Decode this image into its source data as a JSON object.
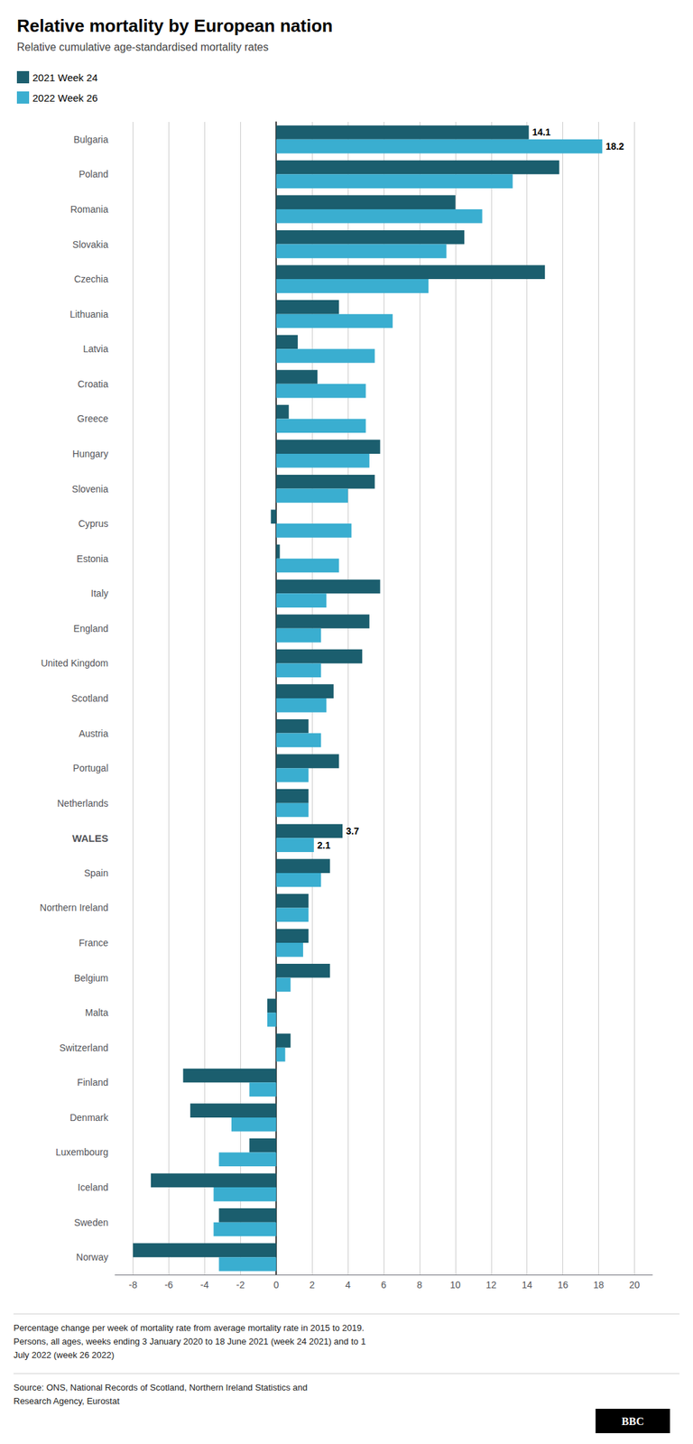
{
  "chart_data": {
    "type": "bar",
    "orientation": "horizontal",
    "title": "Relative mortality by European nation",
    "subtitle": "Relative cumulative age-standardised mortality rates",
    "categories": [
      "Bulgaria",
      "Poland",
      "Romania",
      "Slovakia",
      "Czechia",
      "Lithuania",
      "Latvia",
      "Croatia",
      "Greece",
      "Hungary",
      "Slovenia",
      "Cyprus",
      "Estonia",
      "Italy",
      "England",
      "United Kingdom",
      "Scotland",
      "Austria",
      "Portugal",
      "Netherlands",
      "WALES",
      "Spain",
      "Northern Ireland",
      "France",
      "Belgium",
      "Malta",
      "Switzerland",
      "Finland",
      "Denmark",
      "Luxembourg",
      "Iceland",
      "Sweden",
      "Norway"
    ],
    "series": [
      {
        "name": "2021 Week 24",
        "color": "#1b5e6e",
        "values": [
          14.1,
          15.8,
          10.0,
          10.5,
          15.0,
          3.5,
          1.2,
          2.3,
          0.7,
          5.8,
          5.5,
          -0.3,
          0.2,
          5.8,
          5.2,
          4.8,
          3.2,
          1.8,
          3.5,
          1.8,
          3.7,
          3.0,
          1.8,
          1.8,
          3.0,
          -0.5,
          0.8,
          -5.2,
          -4.8,
          -1.5,
          -7.0,
          -3.2,
          -8.0
        ]
      },
      {
        "name": "2022 Week 26",
        "color": "#3aaed0",
        "values": [
          18.2,
          13.2,
          11.5,
          9.5,
          8.5,
          6.5,
          5.5,
          5.0,
          5.0,
          5.2,
          4.0,
          4.2,
          3.5,
          2.8,
          2.5,
          2.5,
          2.8,
          2.5,
          1.8,
          1.8,
          2.1,
          2.5,
          1.8,
          1.5,
          0.8,
          -0.5,
          0.5,
          -1.5,
          -2.5,
          -3.2,
          -3.5,
          -3.5,
          -3.2
        ]
      }
    ],
    "annotations": [
      {
        "category": "Bulgaria",
        "series": "2021 Week 24",
        "text": "14.1"
      },
      {
        "category": "Bulgaria",
        "series": "2022 Week 26",
        "text": "18.2"
      },
      {
        "category": "WALES",
        "series": "2021 Week 24",
        "text": "3.7"
      },
      {
        "category": "WALES",
        "series": "2022 Week 26",
        "text": "2.1"
      }
    ],
    "xlim": [
      -9,
      21
    ],
    "xticks": [
      -8,
      -6,
      -4,
      -2,
      0,
      2,
      4,
      6,
      8,
      10,
      12,
      14,
      16,
      18,
      20
    ],
    "grid": true,
    "legend": "upper left",
    "notes": [
      "Percentage change per week of mortality rate from average mortality rate in 2015 to 2019.\nPersons, all ages, weeks ending 3 January 2020 to 18 June 2021 (week 24 2021) and to 1\nJuly 2022 (week 26 2022)",
      "Source: ONS, National Records of Scotland, Northern Ireland Statistics and\nResearch Agency, Eurostat"
    ],
    "logo": "BBC"
  }
}
